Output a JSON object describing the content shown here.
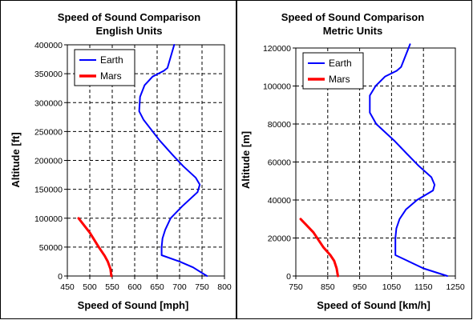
{
  "chart_data": [
    {
      "type": "line",
      "title": "Speed of Sound Comparison",
      "subtitle": "English Units",
      "xlabel": "Speed of Sound [mph]",
      "ylabel": "Altitude [ft]",
      "xlim": [
        450,
        800
      ],
      "ylim": [
        0,
        400000
      ],
      "xticks": [
        450,
        500,
        550,
        600,
        650,
        700,
        750,
        800
      ],
      "yticks": [
        0,
        50000,
        100000,
        150000,
        200000,
        250000,
        300000,
        350000,
        400000
      ],
      "grid": true,
      "legend": "top-left",
      "series": [
        {
          "name": "Earth",
          "color": "#0000ff",
          "points": [
            [
              761,
              0
            ],
            [
              730,
              15000
            ],
            [
              700,
              25000
            ],
            [
              660,
              36000
            ],
            [
              660,
              50000
            ],
            [
              662,
              65000
            ],
            [
              668,
              80000
            ],
            [
              680,
              100000
            ],
            [
              705,
              120000
            ],
            [
              740,
              145000
            ],
            [
              745,
              158000
            ],
            [
              736,
              170000
            ],
            [
              708,
              190000
            ],
            [
              684,
              210000
            ],
            [
              655,
              235000
            ],
            [
              620,
              270000
            ],
            [
              610,
              285000
            ],
            [
              612,
              310000
            ],
            [
              622,
              330000
            ],
            [
              640,
              345000
            ],
            [
              665,
              355000
            ],
            [
              673,
              360000
            ],
            [
              688,
              400000
            ]
          ]
        },
        {
          "name": "Mars",
          "color": "#ff0000",
          "points": [
            [
              548,
              0
            ],
            [
              546,
              12000
            ],
            [
              540,
              25000
            ],
            [
              533,
              35000
            ],
            [
              520,
              50000
            ],
            [
              500,
              75000
            ],
            [
              475,
              100000
            ]
          ]
        }
      ]
    },
    {
      "type": "line",
      "title": "Speed of Sound Comparison",
      "subtitle": "Metric Units",
      "xlabel": "Speed of Sound [km/h]",
      "ylabel": "Altitude [m]",
      "xlim": [
        750,
        1250
      ],
      "ylim": [
        0,
        120000
      ],
      "xticks": [
        750,
        850,
        950,
        1050,
        1150,
        1250
      ],
      "yticks": [
        0,
        20000,
        40000,
        60000,
        80000,
        100000,
        120000
      ],
      "grid": true,
      "legend": "top-left",
      "series": [
        {
          "name": "Earth",
          "color": "#0000ff",
          "points": [
            [
              1225,
              0
            ],
            [
              1150,
              4000
            ],
            [
              1100,
              8000
            ],
            [
              1062,
              11000
            ],
            [
              1062,
              20000
            ],
            [
              1065,
              25000
            ],
            [
              1075,
              30000
            ],
            [
              1095,
              35000
            ],
            [
              1130,
              40000
            ],
            [
              1180,
              45000
            ],
            [
              1185,
              48000
            ],
            [
              1175,
              52000
            ],
            [
              1135,
              58000
            ],
            [
              1100,
              64000
            ],
            [
              1060,
              71000
            ],
            [
              1002,
              80000
            ],
            [
              982,
              86000
            ],
            [
              982,
              95000
            ],
            [
              1000,
              100000
            ],
            [
              1030,
              105000
            ],
            [
              1066,
              108000
            ],
            [
              1080,
              110000
            ],
            [
              1108,
              122000
            ]
          ]
        },
        {
          "name": "Mars",
          "color": "#ff0000",
          "points": [
            [
              882,
              0
            ],
            [
              878,
              4000
            ],
            [
              870,
              8000
            ],
            [
              858,
              11000
            ],
            [
              837,
              15000
            ],
            [
              805,
              23000
            ],
            [
              765,
              30000
            ]
          ]
        }
      ]
    }
  ]
}
